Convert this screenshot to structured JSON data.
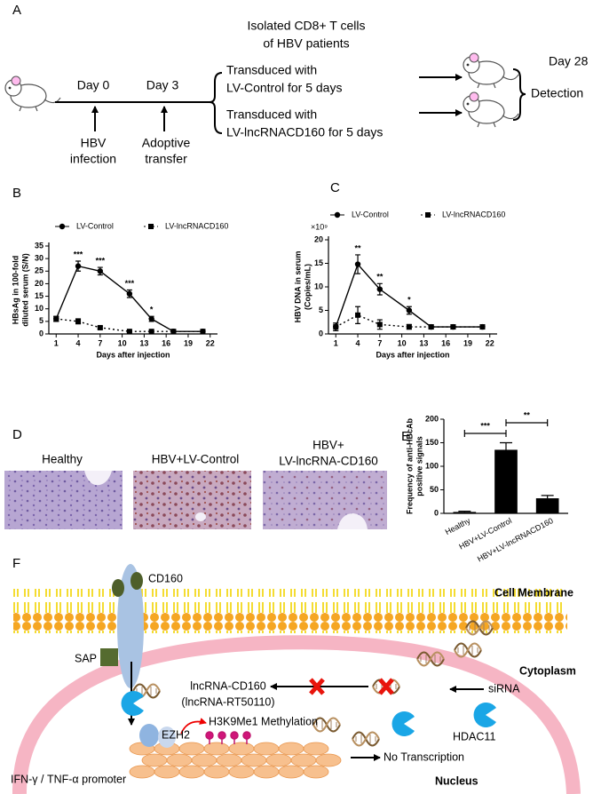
{
  "panel_labels": [
    "A",
    "B",
    "C",
    "D",
    "E",
    "F"
  ],
  "panel_a": {
    "title_lines": [
      "Isolated CD8+ T cells",
      "of HBV patients"
    ],
    "day0": "Day 0",
    "day3": "Day 3",
    "hbv_infection": [
      "HBV",
      "infection"
    ],
    "adoptive_transfer": [
      "Adoptive",
      "transfer"
    ],
    "groups": [
      [
        "Transduced with",
        "LV-Control for 5 days"
      ],
      [
        "Transduced with",
        "LV-lncRNACD160 for 5 days"
      ]
    ],
    "day28": "Day 28",
    "detection": "Detection"
  },
  "chart_data": [
    {
      "type": "line",
      "ylabel": [
        "HBsAg in 100-fold",
        "diluted serum (S/N)"
      ],
      "xlabel": "Days after injection",
      "x": [
        1,
        4,
        7,
        11,
        14,
        17,
        21
      ],
      "series": [
        {
          "name": "LV-Control",
          "color": "#000000",
          "marker": "circle",
          "dash": false,
          "values": [
            6,
            27,
            25,
            16,
            6,
            1,
            1
          ],
          "errors": [
            1,
            2,
            1.5,
            1.5,
            1,
            0.3,
            0.3
          ]
        },
        {
          "name": "LV-lncRNACD160",
          "color": "#000000",
          "marker": "square",
          "dash": true,
          "values": [
            6,
            5,
            2.5,
            1,
            1,
            1,
            1
          ],
          "errors": [
            1,
            1,
            0.5,
            0.3,
            0.3,
            0.3,
            0.3
          ]
        }
      ],
      "xlim": [
        0,
        23
      ],
      "ylim": [
        0,
        35
      ],
      "xticks": [
        1,
        4,
        7,
        10,
        13,
        16,
        19,
        22
      ],
      "yticks": [
        0,
        5,
        10,
        15,
        20,
        25,
        30,
        35
      ],
      "annotations": [
        {
          "text": "***",
          "x": 4
        },
        {
          "text": "***",
          "x": 7
        },
        {
          "text": "***",
          "x": 11
        },
        {
          "text": "*",
          "x": 14
        }
      ]
    },
    {
      "type": "line",
      "multiplier": "×10⁹",
      "ylabel": [
        "HBV DNA in serum",
        "(Copies/mL)"
      ],
      "xlabel": "Days after injection",
      "x": [
        1,
        4,
        7,
        11,
        14,
        17,
        21
      ],
      "series": [
        {
          "name": "LV-Control",
          "color": "#000000",
          "marker": "circle",
          "dash": false,
          "values": [
            1.5,
            14.8,
            9.5,
            5,
            1.5,
            1.5,
            1.5
          ],
          "errors": [
            0.8,
            2,
            1.2,
            0.8,
            0.4,
            0.4,
            0.4
          ]
        },
        {
          "name": "LV-lncRNACD160",
          "color": "#000000",
          "marker": "square",
          "dash": true,
          "values": [
            1.5,
            4,
            2,
            1.5,
            1.5,
            1.5,
            1.5
          ],
          "errors": [
            0.8,
            1.8,
            1,
            0.5,
            0.4,
            0.4,
            0.4
          ]
        }
      ],
      "xlim": [
        0,
        23
      ],
      "ylim": [
        0,
        20
      ],
      "xticks": [
        1,
        4,
        7,
        10,
        13,
        16,
        19,
        22
      ],
      "yticks": [
        0,
        5,
        10,
        15,
        20
      ],
      "annotations": [
        {
          "text": "**",
          "x": 4
        },
        {
          "text": "**",
          "x": 7
        },
        {
          "text": "*",
          "x": 11
        }
      ]
    },
    {
      "type": "bar",
      "ylabel": [
        "Frequency of anti-HBcAb",
        "positive signals"
      ],
      "categories": [
        "Healthy",
        "HBV+LV-Control",
        "HBV+LV-lncRNACD160"
      ],
      "values": [
        3,
        135,
        32
      ],
      "errors": [
        1.5,
        15,
        6
      ],
      "color": "#000000",
      "ylim": [
        0,
        200
      ],
      "yticks": [
        0,
        50,
        100,
        150,
        200
      ],
      "brackets": [
        {
          "text": "***",
          "from": 0,
          "to": 1
        },
        {
          "text": "**",
          "from": 1,
          "to": 2
        }
      ]
    }
  ],
  "panel_d": {
    "labels": [
      [
        "Healthy"
      ],
      [
        "HBV+LV-Control"
      ],
      [
        "HBV+",
        "LV-lncRNA-CD160"
      ]
    ]
  },
  "panel_f": {
    "cd160": "CD160",
    "cell_membrane": "Cell Membrane",
    "sap": "SAP",
    "cytoplasm": "Cytoplasm",
    "lncrna": [
      "lncRNA-CD160",
      "(lncRNA-RT50110)"
    ],
    "sirna": "siRNA",
    "ezh2": "EZH2",
    "methylation": "H3K9Me1 Methylation",
    "hdac11": "HDAC11",
    "no_transcription": "No Transcription",
    "promoter": "IFN-γ / TNF-α promoter",
    "nucleus": "Nucleus"
  }
}
